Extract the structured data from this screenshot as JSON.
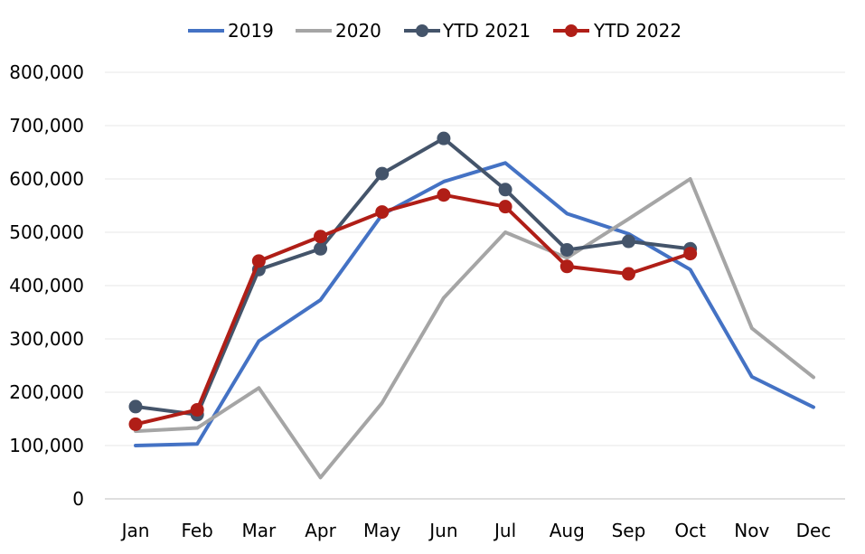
{
  "chart_data": {
    "type": "line",
    "title": "",
    "xlabel": "",
    "ylabel": "",
    "categories": [
      "Jan",
      "Feb",
      "Mar",
      "Apr",
      "May",
      "Jun",
      "Jul",
      "Aug",
      "Sep",
      "Oct",
      "Nov",
      "Dec"
    ],
    "ylim": [
      0,
      800000
    ],
    "yticks": [
      0,
      100000,
      200000,
      300000,
      400000,
      500000,
      600000,
      700000,
      800000
    ],
    "ytick_labels": [
      "0",
      "100,000",
      "200,000",
      "300,000",
      "400,000",
      "500,000",
      "600,000",
      "700,000",
      "800,000"
    ],
    "grid": true,
    "legend_position": "top",
    "series": [
      {
        "name": "2019",
        "color": "#4472C4",
        "markers": false,
        "values": [
          100000,
          103000,
          296000,
          373000,
          533000,
          595000,
          630000,
          535000,
          497000,
          430000,
          229000,
          172000
        ]
      },
      {
        "name": "2020",
        "color": "#A5A5A5",
        "markers": false,
        "values": [
          127000,
          133000,
          208000,
          40000,
          180000,
          377000,
          500000,
          452000,
          525000,
          600000,
          320000,
          228000
        ]
      },
      {
        "name": "YTD 2021",
        "color": "#44546A",
        "markers": true,
        "values": [
          173000,
          158000,
          430000,
          469000,
          610000,
          676000,
          580000,
          467000,
          483000,
          469000,
          null,
          null
        ]
      },
      {
        "name": "YTD 2022",
        "color": "#B01E17",
        "markers": true,
        "values": [
          140000,
          167000,
          446000,
          492000,
          538000,
          570000,
          548000,
          436000,
          422000,
          460000,
          null,
          null
        ]
      }
    ]
  }
}
